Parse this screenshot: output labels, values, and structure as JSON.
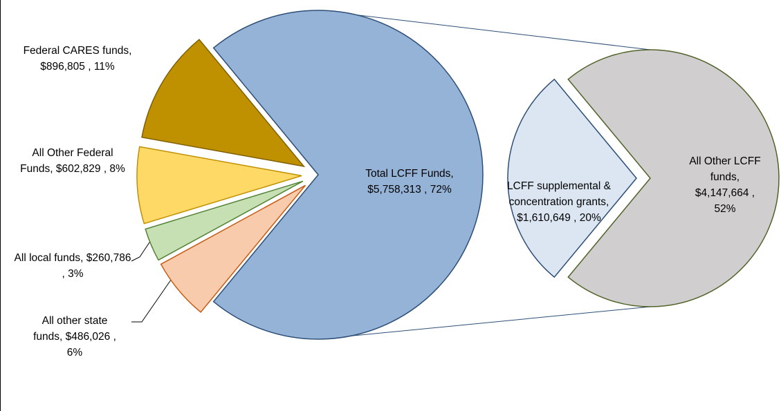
{
  "chart_data": {
    "type": "pie-of-pie",
    "categories": [
      "Total LCFF Funds,",
      "All other state funds,",
      "All local funds,",
      "All Other Federal Funds,",
      "Federal CARES funds,"
    ],
    "values": [
      5758313,
      486026,
      260786,
      602829,
      896805
    ],
    "value_labels": [
      "$5,758,313 , 72%",
      "$486,026 , 6%",
      "$260,786 , 3%",
      "$602,829 , 8%",
      "$896,805 , 11%"
    ],
    "colors": [
      "#95b3d7",
      "#f8cbad",
      "#c6e0b4",
      "#ffd966",
      "#bf9000"
    ],
    "strokes": [
      "#2c4d75",
      "#c55a11",
      "#548235",
      "#bf9000",
      "#7f6000"
    ],
    "secondary": {
      "categories": [
        "LCFF supplemental & concentration grants,",
        "All Other LCFF funds,"
      ],
      "values": [
        1610649,
        4147664
      ],
      "value_labels": [
        "$1,610,649 , 20%",
        "$4,147,664 , 52%"
      ],
      "colors": [
        "#dce6f2",
        "#d0cece"
      ],
      "strokes": [
        "#2c4d75",
        "#4f6228"
      ]
    }
  }
}
